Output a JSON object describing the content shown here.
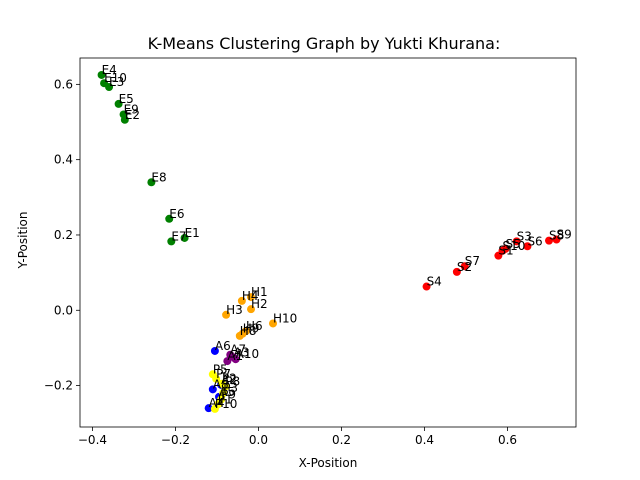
{
  "chart_data": {
    "type": "scatter",
    "title": "K-Means Clustering Graph by Yukti Khurana:",
    "xlabel": "X-Position",
    "ylabel": "Y-Position",
    "xlim": [
      -0.43,
      0.765
    ],
    "ylim": [
      -0.31,
      0.67
    ],
    "xticks": [
      -0.4,
      -0.2,
      0.0,
      0.2,
      0.4,
      0.6
    ],
    "xtick_labels": [
      "−0.4",
      "−0.2",
      "0.0",
      "0.2",
      "0.4",
      "0.6"
    ],
    "yticks": [
      -0.2,
      0.0,
      0.2,
      0.4,
      0.6
    ],
    "ytick_labels": [
      "−0.2",
      "0.0",
      "0.2",
      "0.4",
      "0.6"
    ],
    "grid": false,
    "colors": {
      "green": "#008000",
      "red": "#ff0000",
      "orange": "#ffa500",
      "blue": "#0000ff",
      "purple": "#800080",
      "yellow": "#ffff00"
    },
    "points": [
      {
        "label": "E4",
        "x": -0.378,
        "y": 0.625,
        "color": "green"
      },
      {
        "label": "E10",
        "x": -0.372,
        "y": 0.603,
        "color": "green"
      },
      {
        "label": "E3",
        "x": -0.36,
        "y": 0.593,
        "color": "green"
      },
      {
        "label": "E5",
        "x": -0.337,
        "y": 0.548,
        "color": "green"
      },
      {
        "label": "E9",
        "x": -0.325,
        "y": 0.52,
        "color": "green"
      },
      {
        "label": "E2",
        "x": -0.322,
        "y": 0.506,
        "color": "green"
      },
      {
        "label": "E8",
        "x": -0.258,
        "y": 0.34,
        "color": "green"
      },
      {
        "label": "E6",
        "x": -0.215,
        "y": 0.243,
        "color": "green"
      },
      {
        "label": "E7",
        "x": -0.21,
        "y": 0.183,
        "color": "green"
      },
      {
        "label": "E1",
        "x": -0.178,
        "y": 0.192,
        "color": "green"
      },
      {
        "label": "S3",
        "x": 0.622,
        "y": 0.183,
        "color": "red"
      },
      {
        "label": "S6",
        "x": 0.648,
        "y": 0.17,
        "color": "red"
      },
      {
        "label": "S9",
        "x": 0.718,
        "y": 0.188,
        "color": "red"
      },
      {
        "label": "S8",
        "x": 0.7,
        "y": 0.185,
        "color": "red"
      },
      {
        "label": "S5",
        "x": 0.595,
        "y": 0.163,
        "color": "red"
      },
      {
        "label": "S10",
        "x": 0.588,
        "y": 0.158,
        "color": "red"
      },
      {
        "label": "S1",
        "x": 0.578,
        "y": 0.145,
        "color": "red"
      },
      {
        "label": "S7",
        "x": 0.497,
        "y": 0.117,
        "color": "red"
      },
      {
        "label": "S2",
        "x": 0.478,
        "y": 0.102,
        "color": "red"
      },
      {
        "label": "S4",
        "x": 0.405,
        "y": 0.063,
        "color": "red"
      },
      {
        "label": "H1",
        "x": -0.018,
        "y": 0.035,
        "color": "orange"
      },
      {
        "label": "H4",
        "x": -0.04,
        "y": 0.025,
        "color": "orange"
      },
      {
        "label": "H2",
        "x": -0.018,
        "y": 0.003,
        "color": "orange"
      },
      {
        "label": "H3",
        "x": -0.078,
        "y": -0.012,
        "color": "orange"
      },
      {
        "label": "H10",
        "x": 0.035,
        "y": -0.035,
        "color": "orange"
      },
      {
        "label": "H6",
        "x": -0.03,
        "y": -0.055,
        "color": "orange"
      },
      {
        "label": "H9",
        "x": -0.038,
        "y": -0.062,
        "color": "orange"
      },
      {
        "label": "H8",
        "x": -0.045,
        "y": -0.068,
        "color": "orange"
      },
      {
        "label": "A6",
        "x": -0.105,
        "y": -0.108,
        "color": "blue"
      },
      {
        "label": "A7",
        "x": -0.068,
        "y": -0.118,
        "color": "purple"
      },
      {
        "label": "A3",
        "x": -0.06,
        "y": -0.125,
        "color": "purple"
      },
      {
        "label": "A10",
        "x": -0.055,
        "y": -0.13,
        "color": "purple"
      },
      {
        "label": "A1",
        "x": -0.075,
        "y": -0.135,
        "color": "purple"
      },
      {
        "label": "A2",
        "x": -0.09,
        "y": -0.198,
        "color": "blue"
      },
      {
        "label": "A8",
        "x": -0.11,
        "y": -0.21,
        "color": "blue"
      },
      {
        "label": "A5",
        "x": -0.095,
        "y": -0.23,
        "color": "blue"
      },
      {
        "label": "A4",
        "x": -0.12,
        "y": -0.26,
        "color": "blue"
      },
      {
        "label": "P5",
        "x": -0.11,
        "y": -0.17,
        "color": "yellow"
      },
      {
        "label": "P7",
        "x": -0.102,
        "y": -0.182,
        "color": "yellow"
      },
      {
        "label": "P2",
        "x": -0.088,
        "y": -0.195,
        "color": "yellow"
      },
      {
        "label": "P8",
        "x": -0.08,
        "y": -0.203,
        "color": "yellow"
      },
      {
        "label": "P3",
        "x": -0.085,
        "y": -0.22,
        "color": "yellow"
      },
      {
        "label": "P9",
        "x": -0.09,
        "y": -0.237,
        "color": "yellow"
      },
      {
        "label": "P1",
        "x": -0.098,
        "y": -0.25,
        "color": "yellow"
      },
      {
        "label": "P10",
        "x": -0.105,
        "y": -0.262,
        "color": "yellow"
      }
    ]
  }
}
